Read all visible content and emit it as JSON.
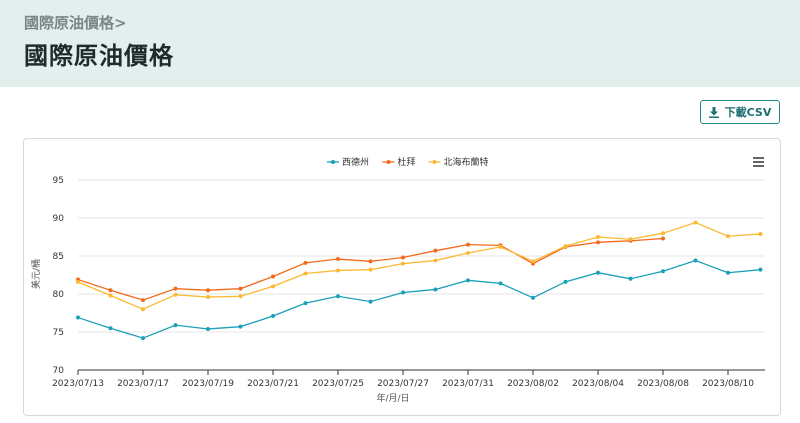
{
  "header": {
    "breadcrumb": "國際原油價格>",
    "title": "國際原油價格"
  },
  "toolbar": {
    "download_label": "下載CSV",
    "download_icon": "download-icon"
  },
  "chart_menu_icon": "hamburger-menu-icon",
  "colors": {
    "header_bg": "#e3efec",
    "wti": "#1aa0b8",
    "dubai": "#f26b1d",
    "brent": "#fbb934"
  },
  "chart_data": {
    "type": "line",
    "xlabel": "年/月/日",
    "ylabel": "美元/桶",
    "ylim": [
      70,
      95
    ],
    "yticks": [
      70,
      75,
      80,
      85,
      90,
      95
    ],
    "x": [
      "2023/07/13",
      "2023/07/14",
      "2023/07/17",
      "2023/07/18",
      "2023/07/19",
      "2023/07/20",
      "2023/07/21",
      "2023/07/24",
      "2023/07/25",
      "2023/07/26",
      "2023/07/27",
      "2023/07/28",
      "2023/07/31",
      "2023/08/01",
      "2023/08/02",
      "2023/08/03",
      "2023/08/04",
      "2023/08/07",
      "2023/08/08",
      "2023/08/09",
      "2023/08/10",
      "2023/08/11"
    ],
    "xtick_labels": [
      "2023/07/13",
      "2023/07/17",
      "2023/07/19",
      "2023/07/21",
      "2023/07/25",
      "2023/07/27",
      "2023/07/31",
      "2023/08/02",
      "2023/08/04",
      "2023/08/08",
      "2023/08/10"
    ],
    "legend_position": "top",
    "grid": true,
    "series": [
      {
        "name": "西德州",
        "color": "#1aa0b8",
        "values": [
          76.9,
          75.5,
          74.2,
          75.9,
          75.4,
          75.7,
          77.1,
          78.8,
          79.7,
          79.0,
          80.2,
          80.6,
          81.8,
          81.4,
          79.5,
          81.6,
          82.8,
          82.0,
          83.0,
          84.4,
          82.8,
          83.2
        ]
      },
      {
        "name": "杜拜",
        "color": "#f26b1d",
        "values": [
          81.9,
          80.5,
          79.2,
          80.7,
          80.5,
          80.7,
          82.3,
          84.1,
          84.6,
          84.3,
          84.8,
          85.7,
          86.5,
          86.4,
          84.0,
          86.2,
          86.8,
          87.0,
          87.3,
          null,
          null,
          null
        ]
      },
      {
        "name": "北海布蘭特",
        "color": "#fbb934",
        "values": [
          81.6,
          79.8,
          78.0,
          79.9,
          79.6,
          79.7,
          81.0,
          82.7,
          83.1,
          83.2,
          84.0,
          84.4,
          85.4,
          86.2,
          84.3,
          86.3,
          87.5,
          87.2,
          88.0,
          89.4,
          87.6,
          87.9
        ]
      }
    ]
  }
}
